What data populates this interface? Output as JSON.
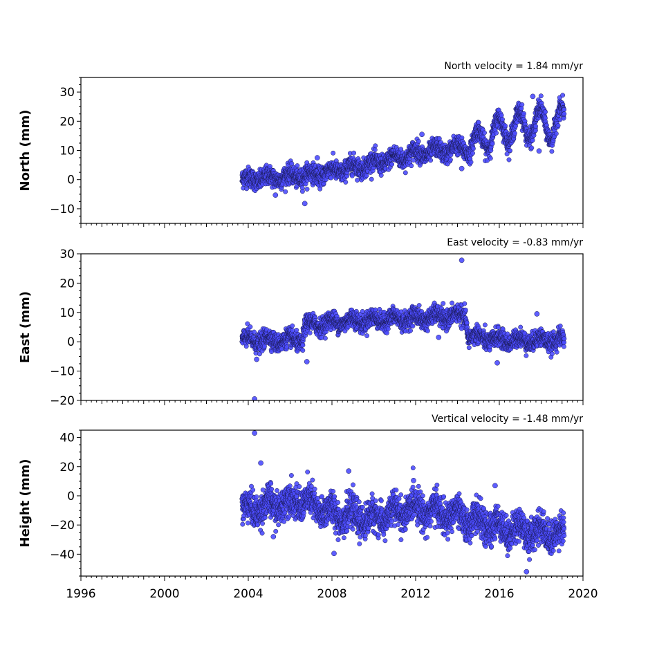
{
  "chart_data": [
    {
      "type": "scatter",
      "panel": "north",
      "title": "North velocity = 1.84 mm/yr",
      "ylabel": "North (mm)",
      "ylim": [
        -15,
        35
      ],
      "yticks": [
        -10,
        0,
        10,
        20,
        30
      ],
      "ytick_labels": [
        "−10",
        "0",
        "10",
        "20",
        "30"
      ],
      "xlim": [
        1996,
        2020
      ],
      "x_start": 2003.7,
      "x_end": 2019.1,
      "trend": [
        {
          "x": 2003.7,
          "y": 0
        },
        {
          "x": 2007.0,
          "y": 1.5
        },
        {
          "x": 2010.0,
          "y": 5.5
        },
        {
          "x": 2012.0,
          "y": 9
        },
        {
          "x": 2014.5,
          "y": 11
        },
        {
          "x": 2016.0,
          "y": 17
        },
        {
          "x": 2017.5,
          "y": 19
        },
        {
          "x": 2019.1,
          "y": 19
        }
      ],
      "seasonal_amplitude": [
        {
          "x": 2003.7,
          "a": 1
        },
        {
          "x": 2014.4,
          "a": 1.5
        },
        {
          "x": 2014.6,
          "a": 4
        },
        {
          "x": 2019.1,
          "a": 6
        }
      ],
      "noise": 1.6,
      "outliers": [
        {
          "x": 2006.7,
          "y": -8.2
        },
        {
          "x": 2007.3,
          "y": 7.5
        },
        {
          "x": 2012.3,
          "y": 15.5
        },
        {
          "x": 2014.2,
          "y": 3.8
        },
        {
          "x": 2017.6,
          "y": 28.5
        },
        {
          "x": 2017.9,
          "y": 9.8
        },
        {
          "x": 2005.3,
          "y": -5.3
        }
      ]
    },
    {
      "type": "scatter",
      "panel": "east",
      "title": "East velocity = -0.83 mm/yr",
      "ylabel": "East (mm)",
      "ylim": [
        -20,
        30
      ],
      "yticks": [
        -20,
        -10,
        0,
        10,
        20,
        30
      ],
      "ytick_labels": [
        "−20",
        "−10",
        "0",
        "10",
        "20",
        "30"
      ],
      "xlim": [
        1996,
        2020
      ],
      "x_start": 2003.7,
      "x_end": 2019.1,
      "trend": [
        {
          "x": 2003.7,
          "y": 0.5
        },
        {
          "x": 2006.6,
          "y": 0.5
        },
        {
          "x": 2006.7,
          "y": 5.5
        },
        {
          "x": 2008.5,
          "y": 7
        },
        {
          "x": 2012.0,
          "y": 8
        },
        {
          "x": 2014.4,
          "y": 9
        },
        {
          "x": 2014.5,
          "y": 2
        },
        {
          "x": 2016.0,
          "y": 0.5
        },
        {
          "x": 2019.1,
          "y": 0.5
        }
      ],
      "seasonal_amplitude": [
        {
          "x": 2003.7,
          "a": 1.2
        },
        {
          "x": 2019.1,
          "a": 1.2
        }
      ],
      "noise": 1.5,
      "outliers": [
        {
          "x": 2004.3,
          "y": -19.5
        },
        {
          "x": 2014.2,
          "y": 27.8
        },
        {
          "x": 2006.8,
          "y": -6.8
        },
        {
          "x": 2004.4,
          "y": -6
        },
        {
          "x": 2015.9,
          "y": -7.2
        },
        {
          "x": 2013.1,
          "y": 1.5
        },
        {
          "x": 2017.8,
          "y": 9.5
        }
      ]
    },
    {
      "type": "scatter",
      "panel": "height",
      "title": "Vertical velocity = -1.48 mm/yr",
      "ylabel": "Height (mm)",
      "ylim": [
        -55,
        45
      ],
      "yticks": [
        -40,
        -20,
        0,
        20,
        40
      ],
      "ytick_labels": [
        "−40",
        "−20",
        "0",
        "20",
        "40"
      ],
      "xlim": [
        1996,
        2020
      ],
      "x_start": 2003.7,
      "x_end": 2019.1,
      "trend": [
        {
          "x": 2003.7,
          "y": -10
        },
        {
          "x": 2006.5,
          "y": -3
        },
        {
          "x": 2008.0,
          "y": -12
        },
        {
          "x": 2010.0,
          "y": -16
        },
        {
          "x": 2012.0,
          "y": -8
        },
        {
          "x": 2014.0,
          "y": -14
        },
        {
          "x": 2016.0,
          "y": -22
        },
        {
          "x": 2019.1,
          "y": -26
        }
      ],
      "seasonal_amplitude": [
        {
          "x": 2003.7,
          "a": 4
        },
        {
          "x": 2019.1,
          "a": 5
        }
      ],
      "noise": 5.5,
      "outliers": [
        {
          "x": 2004.3,
          "y": 43
        },
        {
          "x": 2004.6,
          "y": 22.5
        },
        {
          "x": 2008.8,
          "y": 17
        },
        {
          "x": 2008.1,
          "y": -39.5
        },
        {
          "x": 2017.3,
          "y": -52
        },
        {
          "x": 2015.8,
          "y": 7
        },
        {
          "x": 2011.9,
          "y": 10.5
        },
        {
          "x": 2005.2,
          "y": -28
        }
      ]
    }
  ],
  "x_axis": {
    "ticks": [
      1996,
      2000,
      2004,
      2008,
      2012,
      2016,
      2020
    ],
    "tick_labels": [
      "1996",
      "2000",
      "2004",
      "2008",
      "2012",
      "2016",
      "2020"
    ]
  },
  "colors": {
    "marker_fill": "#4d4dff",
    "marker_edge": "#1a1a55"
  }
}
